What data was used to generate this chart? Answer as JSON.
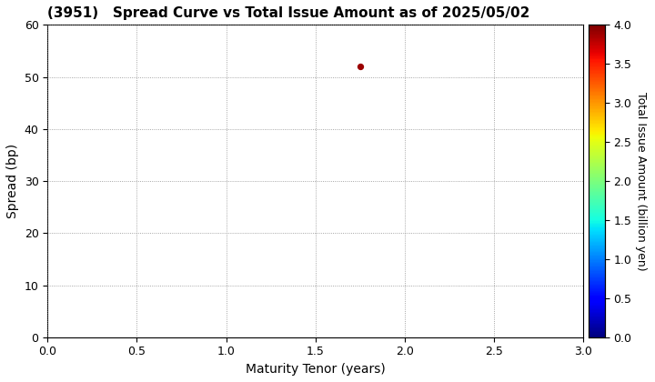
{
  "title": "(3951)   Spread Curve vs Total Issue Amount as of 2025/05/02",
  "xlabel": "Maturity Tenor (years)",
  "ylabel": "Spread (bp)",
  "colorbar_label": "Total Issue Amount (billion yen)",
  "xlim": [
    0.0,
    3.0
  ],
  "ylim": [
    0,
    60
  ],
  "xticks": [
    0.0,
    0.5,
    1.0,
    1.5,
    2.0,
    2.5,
    3.0
  ],
  "yticks": [
    0,
    10,
    20,
    30,
    40,
    50,
    60
  ],
  "colorbar_min": 0.0,
  "colorbar_max": 4.0,
  "colorbar_ticks": [
    0.0,
    0.5,
    1.0,
    1.5,
    2.0,
    2.5,
    3.0,
    3.5,
    4.0
  ],
  "scatter_x": [
    1.75
  ],
  "scatter_y": [
    52.0
  ],
  "scatter_value": [
    3.9
  ],
  "scatter_size": [
    18
  ],
  "background_color": "#ffffff",
  "title_fontsize": 11,
  "label_fontsize": 10,
  "tick_fontsize": 9,
  "colorbar_tick_fontsize": 9,
  "colorbar_label_fontsize": 9
}
